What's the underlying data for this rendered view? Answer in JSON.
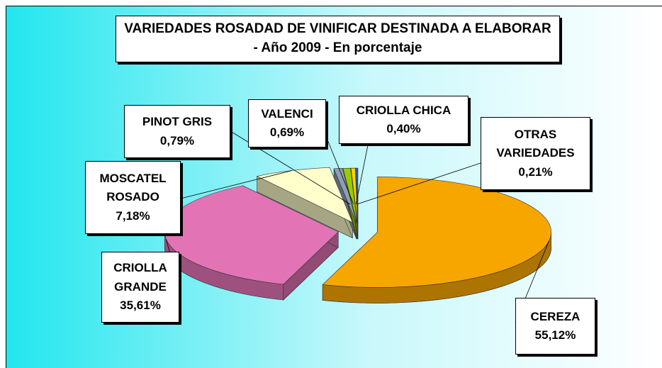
{
  "chart_data": {
    "type": "pie",
    "title": "VARIEDADES ROSADAD DE VINIFICAR DESTINADA A ELABORAR - Año 2009 - En porcentaje",
    "categories": [
      "CEREZA",
      "CRIOLLA GRANDE",
      "MOSCATEL ROSADO",
      "PINOT GRIS",
      "VALENCI",
      "CRIOLLA CHICA",
      "OTRAS VARIEDADES"
    ],
    "values": [
      55.12,
      35.61,
      7.18,
      0.79,
      0.69,
      0.4,
      0.21
    ],
    "value_labels": [
      "55,12%",
      "35,61%",
      "7,18%",
      "0,79%",
      "0,69%",
      "0,40%",
      "0,21%"
    ],
    "colors": [
      "#f7a600",
      "#e274b6",
      "#ffffcc",
      "#8e9fb4",
      "#99cc00",
      "#ffd200",
      "#1f5fc8"
    ]
  }
}
